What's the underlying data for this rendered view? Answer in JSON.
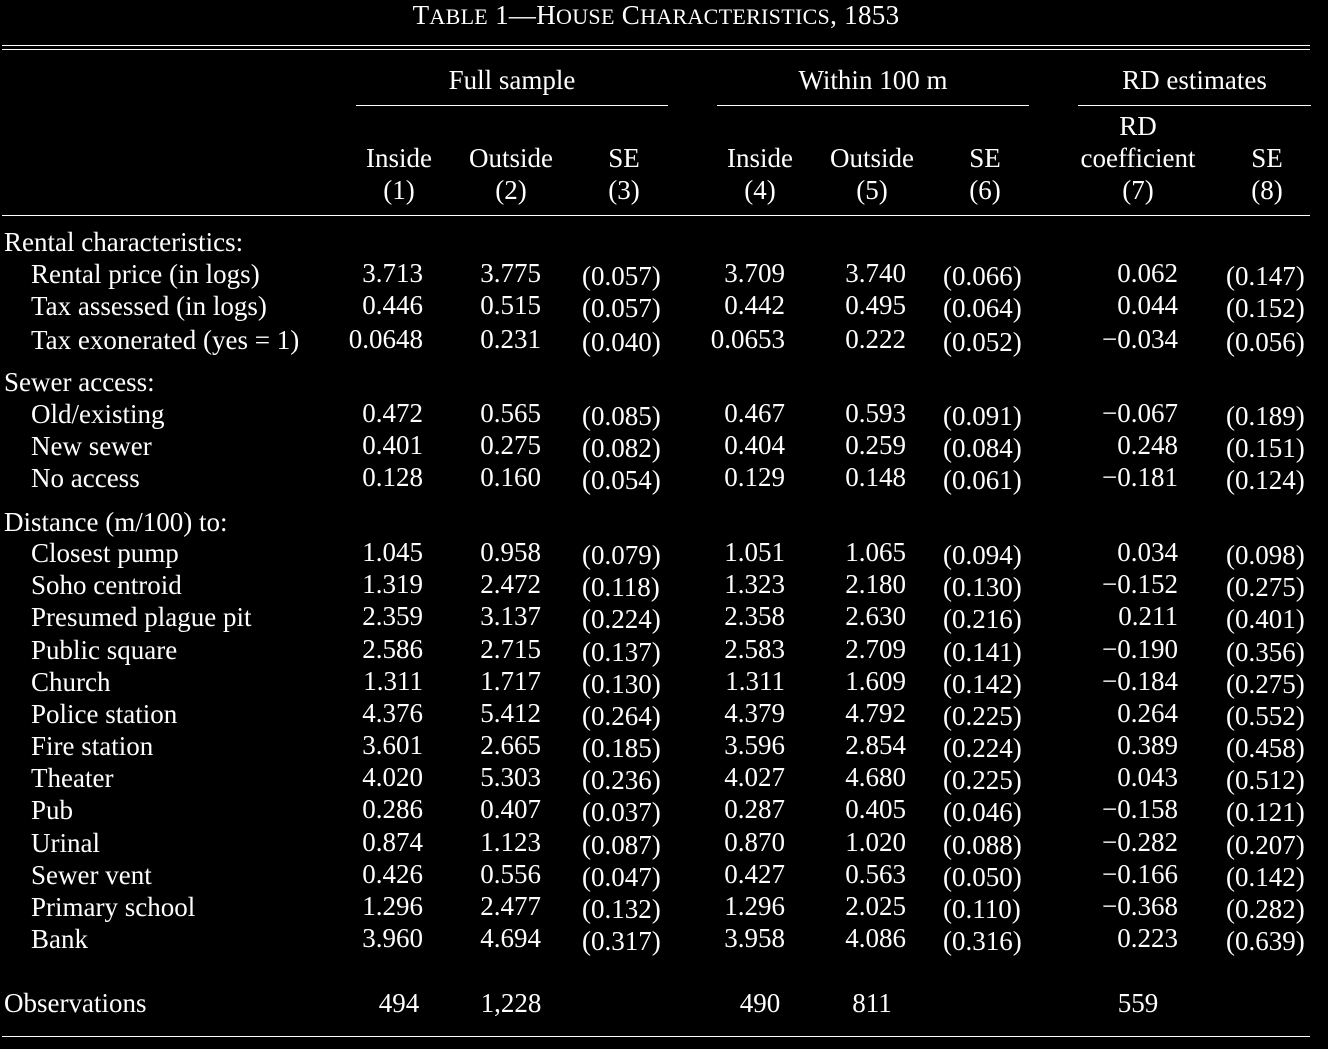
{
  "title": {
    "label": "Table 1",
    "dash": "—",
    "name": "House Characteristics",
    "year": ", 1853"
  },
  "groups": [
    {
      "label": "Full sample"
    },
    {
      "label": "Within 100 m"
    },
    {
      "label": "RD estimates"
    }
  ],
  "columns": [
    {
      "line1": "",
      "line2": "Inside",
      "line3": "(1)"
    },
    {
      "line1": "",
      "line2": "Outside",
      "line3": "(2)"
    },
    {
      "line1": "",
      "line2": "SE",
      "line3": "(3)"
    },
    {
      "line1": "",
      "line2": "Inside",
      "line3": "(4)"
    },
    {
      "line1": "",
      "line2": "Outside",
      "line3": "(5)"
    },
    {
      "line1": "",
      "line2": "SE",
      "line3": "(6)"
    },
    {
      "line1": "RD",
      "line2": "coefficient",
      "line3": "(7)"
    },
    {
      "line1": "",
      "line2": "SE",
      "line3": "(8)"
    }
  ],
  "sections": [
    {
      "heading": "Rental characteristics:",
      "rows": [
        {
          "label": "Rental price (in logs)",
          "values": [
            "3.713",
            "3.775",
            "(0.057)",
            "3.709",
            "3.740",
            "(0.066)",
            "0.062",
            "(0.147)"
          ]
        },
        {
          "label": "Tax assessed (in logs)",
          "values": [
            "0.446",
            "0.515",
            "(0.057)",
            "0.442",
            "0.495",
            "(0.064)",
            "0.044",
            "(0.152)"
          ]
        },
        {
          "label": "Tax exonerated (yes = 1)",
          "values": [
            "0.0648",
            "0.231",
            "(0.040)",
            "0.0653",
            "0.222",
            "(0.052)",
            "−0.034",
            "(0.056)"
          ]
        }
      ]
    },
    {
      "heading": "Sewer access:",
      "rows": [
        {
          "label": "Old/existing",
          "values": [
            "0.472",
            "0.565",
            "(0.085)",
            "0.467",
            "0.593",
            "(0.091)",
            "−0.067",
            "(0.189)"
          ]
        },
        {
          "label": "New sewer",
          "values": [
            "0.401",
            "0.275",
            "(0.082)",
            "0.404",
            "0.259",
            "(0.084)",
            "0.248",
            "(0.151)"
          ]
        },
        {
          "label": "No access",
          "values": [
            "0.128",
            "0.160",
            "(0.054)",
            "0.129",
            "0.148",
            "(0.061)",
            "−0.181",
            "(0.124)"
          ]
        }
      ]
    },
    {
      "heading": "Distance (m/100) to:",
      "rows": [
        {
          "label": "Closest pump",
          "values": [
            "1.045",
            "0.958",
            "(0.079)",
            "1.051",
            "1.065",
            "(0.094)",
            "0.034",
            "(0.098)"
          ]
        },
        {
          "label": "Soho centroid",
          "values": [
            "1.319",
            "2.472",
            "(0.118)",
            "1.323",
            "2.180",
            "(0.130)",
            "−0.152",
            "(0.275)"
          ]
        },
        {
          "label": "Presumed plague pit",
          "values": [
            "2.359",
            "3.137",
            "(0.224)",
            "2.358",
            "2.630",
            "(0.216)",
            "0.211",
            "(0.401)"
          ]
        },
        {
          "label": "Public square",
          "values": [
            "2.586",
            "2.715",
            "(0.137)",
            "2.583",
            "2.709",
            "(0.141)",
            "−0.190",
            "(0.356)"
          ]
        },
        {
          "label": "Church",
          "values": [
            "1.311",
            "1.717",
            "(0.130)",
            "1.311",
            "1.609",
            "(0.142)",
            "−0.184",
            "(0.275)"
          ]
        },
        {
          "label": "Police station",
          "values": [
            "4.376",
            "5.412",
            "(0.264)",
            "4.379",
            "4.792",
            "(0.225)",
            "0.264",
            "(0.552)"
          ]
        },
        {
          "label": "Fire station",
          "values": [
            "3.601",
            "2.665",
            "(0.185)",
            "3.596",
            "2.854",
            "(0.224)",
            "0.389",
            "(0.458)"
          ]
        },
        {
          "label": "Theater",
          "values": [
            "4.020",
            "5.303",
            "(0.236)",
            "4.027",
            "4.680",
            "(0.225)",
            "0.043",
            "(0.512)"
          ]
        },
        {
          "label": "Pub",
          "values": [
            "0.286",
            "0.407",
            "(0.037)",
            "0.287",
            "0.405",
            "(0.046)",
            "−0.158",
            "(0.121)"
          ]
        },
        {
          "label": "Urinal",
          "values": [
            "0.874",
            "1.123",
            "(0.087)",
            "0.870",
            "1.020",
            "(0.088)",
            "−0.282",
            "(0.207)"
          ]
        },
        {
          "label": "Sewer vent",
          "values": [
            "0.426",
            "0.556",
            "(0.047)",
            "0.427",
            "0.563",
            "(0.050)",
            "−0.166",
            "(0.142)"
          ]
        },
        {
          "label": "Primary school",
          "values": [
            "1.296",
            "2.477",
            "(0.132)",
            "1.296",
            "2.025",
            "(0.110)",
            "−0.368",
            "(0.282)"
          ]
        },
        {
          "label": "Bank",
          "values": [
            "3.960",
            "4.694",
            "(0.317)",
            "3.958",
            "4.086",
            "(0.316)",
            "0.223",
            "(0.639)"
          ]
        }
      ]
    }
  ],
  "observations": {
    "label": "Observations",
    "values": [
      "494",
      "1,228",
      "",
      "490",
      "811",
      "",
      "559",
      ""
    ]
  }
}
